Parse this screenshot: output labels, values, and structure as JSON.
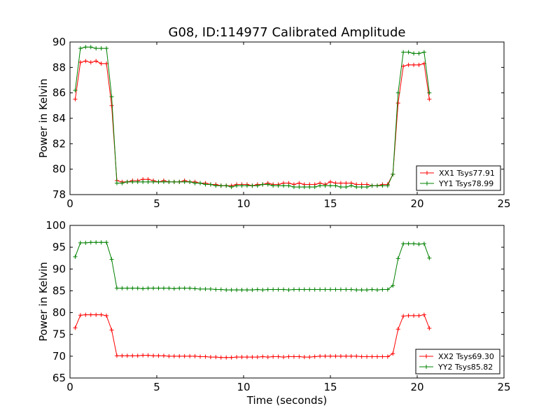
{
  "chart_data": [
    {
      "type": "line",
      "title": "G08, ID:114977 Calibrated Amplitude",
      "xlabel": "",
      "ylabel": "Power in Kelvin",
      "xlim": [
        0,
        25
      ],
      "ylim": [
        78,
        90
      ],
      "xticks": [
        "0",
        "5",
        "10",
        "15",
        "20",
        "25"
      ],
      "yticks": [
        "78",
        "80",
        "82",
        "84",
        "86",
        "88",
        "90"
      ],
      "legend_position": "lower-right",
      "x": [
        0.3,
        0.6,
        0.9,
        1.2,
        1.5,
        1.8,
        2.1,
        2.4,
        2.7,
        3.0,
        3.3,
        3.6,
        3.9,
        4.2,
        4.5,
        4.8,
        5.1,
        5.4,
        5.7,
        6.0,
        6.3,
        6.6,
        6.9,
        7.2,
        7.5,
        7.8,
        8.1,
        8.4,
        8.7,
        9.0,
        9.3,
        9.6,
        9.9,
        10.2,
        10.5,
        10.8,
        11.1,
        11.4,
        11.7,
        12.0,
        12.3,
        12.6,
        12.9,
        13.2,
        13.5,
        13.8,
        14.1,
        14.4,
        14.7,
        15.0,
        15.3,
        15.6,
        15.9,
        16.2,
        16.5,
        16.8,
        17.1,
        17.4,
        17.7,
        18.0,
        18.3,
        18.6,
        18.9,
        19.2,
        19.5,
        19.8,
        20.1,
        20.4,
        20.7
      ],
      "series": [
        {
          "name": "XX1 Tsys77.91",
          "color": "#ff0000",
          "values": [
            85.5,
            88.4,
            88.5,
            88.4,
            88.5,
            88.3,
            88.3,
            85.0,
            79.1,
            79.0,
            79.0,
            79.1,
            79.1,
            79.2,
            79.2,
            79.1,
            79.0,
            79.1,
            79.0,
            79.0,
            79.0,
            79.1,
            79.0,
            79.0,
            78.9,
            78.9,
            78.8,
            78.8,
            78.7,
            78.7,
            78.7,
            78.8,
            78.8,
            78.8,
            78.7,
            78.8,
            78.8,
            78.9,
            78.8,
            78.8,
            78.9,
            78.9,
            78.8,
            78.9,
            78.8,
            78.8,
            78.8,
            78.9,
            78.8,
            79.0,
            78.9,
            78.9,
            78.9,
            78.9,
            78.8,
            78.8,
            78.8,
            78.7,
            78.7,
            78.8,
            78.8,
            79.6,
            85.2,
            88.1,
            88.2,
            88.2,
            88.2,
            88.3,
            85.5
          ]
        },
        {
          "name": "YY1 Tsys78.99",
          "color": "#008000",
          "values": [
            86.2,
            89.5,
            89.6,
            89.6,
            89.5,
            89.5,
            89.5,
            85.7,
            78.9,
            78.9,
            79.0,
            79.0,
            79.0,
            79.0,
            79.0,
            79.0,
            79.0,
            79.0,
            79.0,
            79.0,
            79.0,
            79.0,
            79.0,
            78.9,
            78.9,
            78.8,
            78.8,
            78.7,
            78.7,
            78.7,
            78.6,
            78.7,
            78.7,
            78.7,
            78.7,
            78.7,
            78.8,
            78.8,
            78.7,
            78.7,
            78.7,
            78.7,
            78.6,
            78.6,
            78.6,
            78.6,
            78.6,
            78.7,
            78.7,
            78.7,
            78.7,
            78.6,
            78.6,
            78.7,
            78.6,
            78.6,
            78.6,
            78.7,
            78.7,
            78.7,
            78.7,
            79.6,
            86.0,
            89.2,
            89.2,
            89.1,
            89.1,
            89.2,
            86.0
          ]
        }
      ]
    },
    {
      "type": "line",
      "title": "",
      "xlabel": "Time (seconds)",
      "ylabel": "Power in Kelvin",
      "xlim": [
        0,
        25
      ],
      "ylim": [
        65,
        100
      ],
      "xticks": [
        "0",
        "5",
        "10",
        "15",
        "20",
        "25"
      ],
      "yticks": [
        "65",
        "70",
        "75",
        "80",
        "85",
        "90",
        "95",
        "100"
      ],
      "legend_position": "lower-right",
      "x": [
        0.3,
        0.6,
        0.9,
        1.2,
        1.5,
        1.8,
        2.1,
        2.4,
        2.7,
        3.0,
        3.3,
        3.6,
        3.9,
        4.2,
        4.5,
        4.8,
        5.1,
        5.4,
        5.7,
        6.0,
        6.3,
        6.6,
        6.9,
        7.2,
        7.5,
        7.8,
        8.1,
        8.4,
        8.7,
        9.0,
        9.3,
        9.6,
        9.9,
        10.2,
        10.5,
        10.8,
        11.1,
        11.4,
        11.7,
        12.0,
        12.3,
        12.6,
        12.9,
        13.2,
        13.5,
        13.8,
        14.1,
        14.4,
        14.7,
        15.0,
        15.3,
        15.6,
        15.9,
        16.2,
        16.5,
        16.8,
        17.1,
        17.4,
        17.7,
        18.0,
        18.3,
        18.6,
        18.9,
        19.2,
        19.5,
        19.8,
        20.1,
        20.4,
        20.7
      ],
      "series": [
        {
          "name": "XX2 Tsys69.30",
          "color": "#ff0000",
          "values": [
            76.5,
            79.4,
            79.5,
            79.5,
            79.5,
            79.5,
            79.3,
            76.0,
            70.1,
            70.1,
            70.1,
            70.1,
            70.1,
            70.2,
            70.2,
            70.1,
            70.1,
            70.1,
            70.0,
            70.0,
            70.0,
            70.0,
            70.0,
            70.0,
            69.9,
            69.9,
            69.8,
            69.8,
            69.7,
            69.7,
            69.7,
            69.8,
            69.8,
            69.8,
            69.8,
            69.8,
            69.9,
            69.8,
            69.9,
            69.9,
            69.8,
            69.9,
            69.9,
            69.9,
            69.8,
            69.8,
            69.9,
            70.0,
            70.0,
            70.0,
            70.0,
            70.0,
            70.0,
            70.0,
            70.0,
            69.9,
            69.9,
            69.9,
            69.9,
            69.9,
            69.9,
            70.6,
            76.2,
            79.2,
            79.3,
            79.3,
            79.3,
            79.5,
            76.4
          ]
        },
        {
          "name": "YY2 Tsys85.82",
          "color": "#008000",
          "values": [
            92.8,
            96.0,
            96.0,
            96.1,
            96.1,
            96.1,
            96.1,
            92.2,
            85.6,
            85.6,
            85.6,
            85.6,
            85.6,
            85.5,
            85.6,
            85.6,
            85.6,
            85.6,
            85.6,
            85.5,
            85.6,
            85.6,
            85.6,
            85.5,
            85.4,
            85.4,
            85.4,
            85.3,
            85.3,
            85.2,
            85.2,
            85.2,
            85.2,
            85.2,
            85.2,
            85.3,
            85.2,
            85.3,
            85.3,
            85.3,
            85.3,
            85.2,
            85.3,
            85.3,
            85.3,
            85.3,
            85.3,
            85.3,
            85.3,
            85.3,
            85.3,
            85.3,
            85.3,
            85.3,
            85.2,
            85.2,
            85.2,
            85.3,
            85.2,
            85.3,
            85.3,
            86.2,
            92.4,
            95.8,
            95.8,
            95.8,
            95.7,
            95.8,
            92.5
          ]
        }
      ]
    }
  ]
}
